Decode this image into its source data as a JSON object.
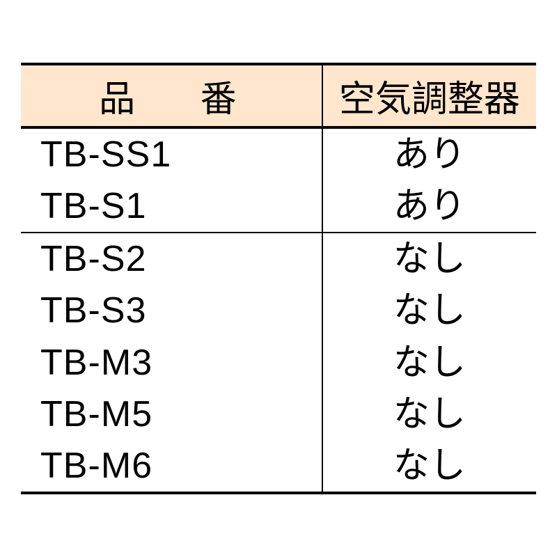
{
  "table": {
    "columns": [
      "品番",
      "空気調整器"
    ],
    "groups": [
      {
        "rows": [
          {
            "code": "TB-SS1",
            "regulator": "あり"
          },
          {
            "code": "TB-S1",
            "regulator": "あり"
          }
        ]
      },
      {
        "rows": [
          {
            "code": "TB-S2",
            "regulator": "なし"
          },
          {
            "code": "TB-S3",
            "regulator": "なし"
          },
          {
            "code": "TB-M3",
            "regulator": "なし"
          },
          {
            "code": "TB-M5",
            "regulator": "なし"
          },
          {
            "code": "TB-M6",
            "regulator": "なし"
          }
        ]
      }
    ],
    "header_bg_color": "#ffe6cc",
    "border_color": "#000000",
    "text_color": "#000000",
    "font_size": 52,
    "outer_border_width": 4,
    "inner_border_width": 2
  }
}
